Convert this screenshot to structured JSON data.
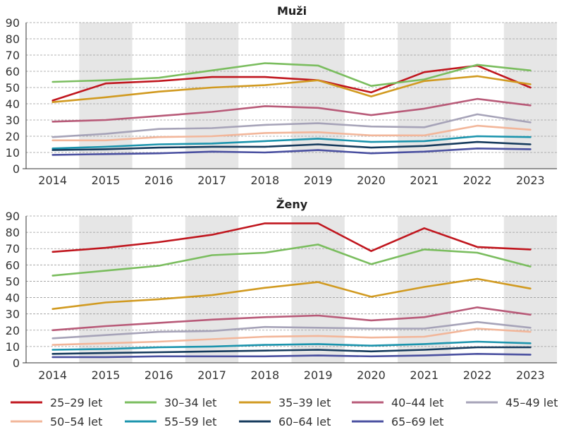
{
  "chart_data": [
    {
      "type": "line",
      "title": "Muži",
      "categories": [
        "2014",
        "2015",
        "2016",
        "2017",
        "2018",
        "2019",
        "2020",
        "2021",
        "2022",
        "2023"
      ],
      "y_ticks": [
        "0",
        "10",
        "20",
        "30",
        "40",
        "50",
        "60",
        "70",
        "80",
        "90"
      ],
      "ylim": [
        0,
        90
      ],
      "grid": "horizontal-dashed",
      "shaded_alternate_years": true,
      "series": [
        {
          "name": "25–29 let",
          "color": "#c0161e",
          "values": [
            42,
            52.5,
            54,
            56.5,
            56.5,
            54.5,
            47,
            59.5,
            63.5,
            50
          ]
        },
        {
          "name": "30–34 let",
          "color": "#7abd5e",
          "values": [
            53.5,
            54.5,
            56,
            60.5,
            65,
            63.5,
            51,
            55,
            64,
            60.5
          ]
        },
        {
          "name": "35–39 let",
          "color": "#d19a20",
          "values": [
            41,
            44,
            47.5,
            50,
            51.5,
            54.5,
            44.5,
            54,
            57,
            52
          ]
        },
        {
          "name": "40–44 let",
          "color": "#b85a78",
          "values": [
            29,
            30,
            32.5,
            35,
            38.5,
            37.5,
            33,
            37,
            43,
            39
          ]
        },
        {
          "name": "45–49 let",
          "color": "#a6a3b8",
          "values": [
            19.5,
            21.5,
            24.5,
            25,
            27,
            28,
            26,
            25.5,
            33.5,
            28.5
          ]
        },
        {
          "name": "50–54 let",
          "color": "#f2b69a",
          "values": [
            17.5,
            17.5,
            19.5,
            20,
            22,
            22.5,
            20.5,
            20.5,
            26.5,
            24
          ]
        },
        {
          "name": "55–59 let",
          "color": "#1b94ad",
          "values": [
            12.5,
            13.5,
            15,
            15.5,
            17,
            18.5,
            16.5,
            17,
            20,
            19.5
          ]
        },
        {
          "name": "60–64 let",
          "color": "#153a5c",
          "values": [
            11.5,
            12,
            13,
            13.5,
            13.5,
            15,
            13,
            14,
            16.5,
            15
          ]
        },
        {
          "name": "65–69 let",
          "color": "#4a50a0",
          "values": [
            8.5,
            9,
            9.5,
            10.5,
            10,
            11.5,
            9.5,
            10.5,
            12.5,
            12
          ]
        }
      ]
    },
    {
      "type": "line",
      "title": "Ženy",
      "categories": [
        "2014",
        "2015",
        "2016",
        "2017",
        "2018",
        "2019",
        "2020",
        "2021",
        "2022",
        "2023"
      ],
      "y_ticks": [
        "0",
        "10",
        "20",
        "30",
        "40",
        "50",
        "60",
        "70",
        "80",
        "90"
      ],
      "ylim": [
        0,
        90
      ],
      "grid": "horizontal-dashed",
      "shaded_alternate_years": true,
      "series": [
        {
          "name": "25–29 let",
          "color": "#c0161e",
          "values": [
            68,
            70.5,
            74,
            78.5,
            85.5,
            85.5,
            68.5,
            82.5,
            71,
            69.5
          ]
        },
        {
          "name": "30–34 let",
          "color": "#7abd5e",
          "values": [
            53.5,
            56.5,
            59.5,
            66,
            67.5,
            72.5,
            60.5,
            69.5,
            67.5,
            59
          ]
        },
        {
          "name": "35–39 let",
          "color": "#d19a20",
          "values": [
            33,
            37,
            39,
            41.5,
            46,
            49.5,
            40.5,
            46.5,
            51.5,
            45.5
          ]
        },
        {
          "name": "40–44 let",
          "color": "#b85a78",
          "values": [
            20,
            22.5,
            24.5,
            26.5,
            28,
            29,
            26,
            28,
            34,
            29.5
          ]
        },
        {
          "name": "45–49 let",
          "color": "#a6a3b8",
          "values": [
            15,
            17,
            19,
            19.5,
            22,
            21.5,
            21,
            21,
            25,
            21.5
          ]
        },
        {
          "name": "50–54 let",
          "color": "#f2b69a",
          "values": [
            11,
            12,
            13,
            14.5,
            16,
            16.5,
            15.5,
            16,
            21,
            19
          ]
        },
        {
          "name": "55–59 let",
          "color": "#1b94ad",
          "values": [
            8,
            8.5,
            9.5,
            10,
            11,
            11.5,
            10.5,
            11.5,
            13,
            12
          ]
        },
        {
          "name": "60–64 let",
          "color": "#153a5c",
          "values": [
            5.5,
            6,
            6.5,
            7,
            7.5,
            8,
            7,
            8,
            9.5,
            9.5
          ]
        },
        {
          "name": "65–69 let",
          "color": "#4a50a0",
          "values": [
            3.5,
            3.5,
            4,
            4,
            4,
            4.5,
            4,
            4.5,
            5.5,
            5
          ]
        }
      ]
    }
  ],
  "legend": {
    "placement": "bottom",
    "items": [
      {
        "label": "25–29 let",
        "color": "#c0161e"
      },
      {
        "label": "30–34 let",
        "color": "#7abd5e"
      },
      {
        "label": "35–39 let",
        "color": "#d19a20"
      },
      {
        "label": "40–44 let",
        "color": "#b85a78"
      },
      {
        "label": "45–49 let",
        "color": "#a6a3b8"
      },
      {
        "label": "50–54 let",
        "color": "#f2b69a"
      },
      {
        "label": "55–59 let",
        "color": "#1b94ad"
      },
      {
        "label": "60–64 let",
        "color": "#153a5c"
      },
      {
        "label": "65–69 let",
        "color": "#4a50a0"
      }
    ]
  }
}
